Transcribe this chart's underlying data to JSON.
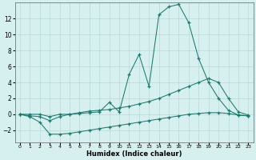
{
  "xlabel": "Humidex (Indice chaleur)",
  "x_values": [
    0,
    1,
    2,
    3,
    4,
    5,
    6,
    7,
    8,
    9,
    10,
    11,
    12,
    13,
    14,
    15,
    16,
    17,
    18,
    19,
    20,
    21,
    22,
    23
  ],
  "line_bottom": [
    0,
    -0.3,
    -1.0,
    -2.5,
    -2.5,
    -2.4,
    -2.2,
    -2.0,
    -1.8,
    -1.6,
    -1.4,
    -1.2,
    -1.0,
    -0.8,
    -0.6,
    -0.4,
    -0.2,
    0.0,
    0.1,
    0.2,
    0.2,
    0.1,
    -0.1,
    -0.2
  ],
  "line_mid": [
    0,
    0.0,
    0.0,
    -0.3,
    0.0,
    0.0,
    0.2,
    0.4,
    0.5,
    0.6,
    0.8,
    1.0,
    1.3,
    1.6,
    2.0,
    2.5,
    3.0,
    3.5,
    4.0,
    4.5,
    4.0,
    2.0,
    0.3,
    -0.1
  ],
  "line_peak": [
    0,
    -0.2,
    -0.3,
    -0.8,
    -0.3,
    0.0,
    0.1,
    0.2,
    0.3,
    1.5,
    0.3,
    5.0,
    7.5,
    3.5,
    12.5,
    13.5,
    13.8,
    11.5,
    7.0,
    4.0,
    2.0,
    0.5,
    -0.1,
    -0.2
  ],
  "line_color": "#1a7a6e",
  "bg_color": "#d6f0f0",
  "grid_color": "#b8d8d8",
  "ylim": [
    -3.5,
    14
  ],
  "yticks": [
    -2,
    0,
    2,
    4,
    6,
    8,
    10,
    12
  ],
  "xlim": [
    -0.5,
    23.5
  ]
}
